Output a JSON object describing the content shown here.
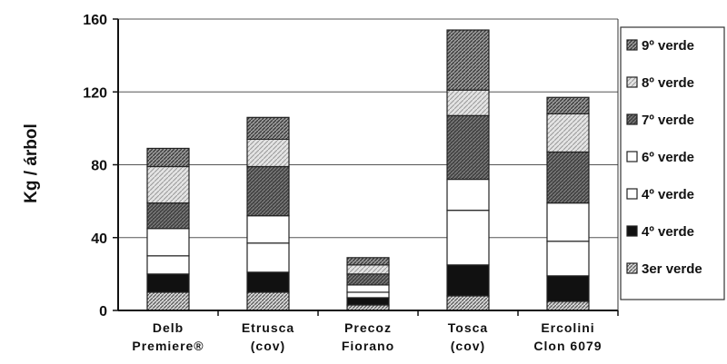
{
  "chart_data": {
    "type": "stacked-bar",
    "ylabel": "Kg / árbol",
    "xlabel": "",
    "title": "",
    "ylim": [
      0,
      160
    ],
    "yticks": [
      0,
      40,
      80,
      120,
      160
    ],
    "grid": true,
    "legend_position": "right",
    "categories": [
      [
        "Delb",
        "Premiere®"
      ],
      [
        "Etrusca",
        "(cov)"
      ],
      [
        "Precoz",
        "Fiorano"
      ],
      [
        "Tosca",
        "(cov)"
      ],
      [
        "Ercolini",
        "Clon 6079"
      ]
    ],
    "series": [
      {
        "name": "3er verde",
        "values": [
          10,
          10,
          3,
          8,
          5
        ],
        "color": "#b9b9b9",
        "pattern": "diag-dense"
      },
      {
        "name": "4º verde",
        "values": [
          10,
          11,
          4,
          17,
          14
        ],
        "color": "#111111",
        "pattern": "solid"
      },
      {
        "name": "4º verde",
        "values": [
          10,
          16,
          3,
          30,
          19
        ],
        "color": "#ffffff",
        "pattern": "solid"
      },
      {
        "name": "6º verde",
        "values": [
          15,
          15,
          4,
          17,
          21
        ],
        "color": "#ffffff",
        "pattern": "solid"
      },
      {
        "name": "7º verde",
        "values": [
          14,
          27,
          6,
          35,
          28
        ],
        "color": "#555555",
        "pattern": "diag-dark"
      },
      {
        "name": "8º verde",
        "values": [
          20,
          15,
          5,
          14,
          21
        ],
        "color": "#cfcfcf",
        "pattern": "diag-light"
      },
      {
        "name": "9º verde",
        "values": [
          10,
          12,
          4,
          33,
          9
        ],
        "color": "#8a8a8a",
        "pattern": "diag-mid"
      }
    ],
    "legend_order": [
      "9º verde",
      "8º verde",
      "7º verde",
      "6º verde",
      "4º verde",
      "4º verde",
      "3er verde"
    ]
  }
}
